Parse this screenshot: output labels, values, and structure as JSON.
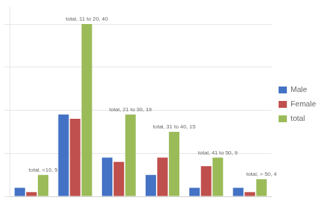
{
  "chart_data": {
    "type": "bar",
    "categories": [
      "<10",
      "11 to 20",
      "21 to 30",
      "31 to 40",
      "41 to 50",
      "> 50"
    ],
    "series": [
      {
        "name": "Male",
        "color": "#4472c4",
        "values": [
          2,
          19,
          9,
          5,
          2,
          2
        ]
      },
      {
        "name": "Female",
        "color": "#c0504d",
        "values": [
          1,
          18,
          8,
          9,
          7,
          1
        ]
      },
      {
        "name": "total",
        "color": "#9bbb59",
        "values": [
          5,
          40,
          19,
          15,
          9,
          4
        ],
        "value_labels": [
          "total, <10, 5",
          "total, 11 to 20, 40",
          "total, 21 to 30, 19",
          "total, 31 to 40, 15",
          "total, 41 to 50, 9",
          "total, > 50, 4"
        ]
      }
    ],
    "ylim": [
      0,
      44
    ],
    "yticks": [
      0,
      10,
      20,
      30,
      40
    ],
    "grid": true,
    "legend": "right",
    "tick_labels": false
  }
}
